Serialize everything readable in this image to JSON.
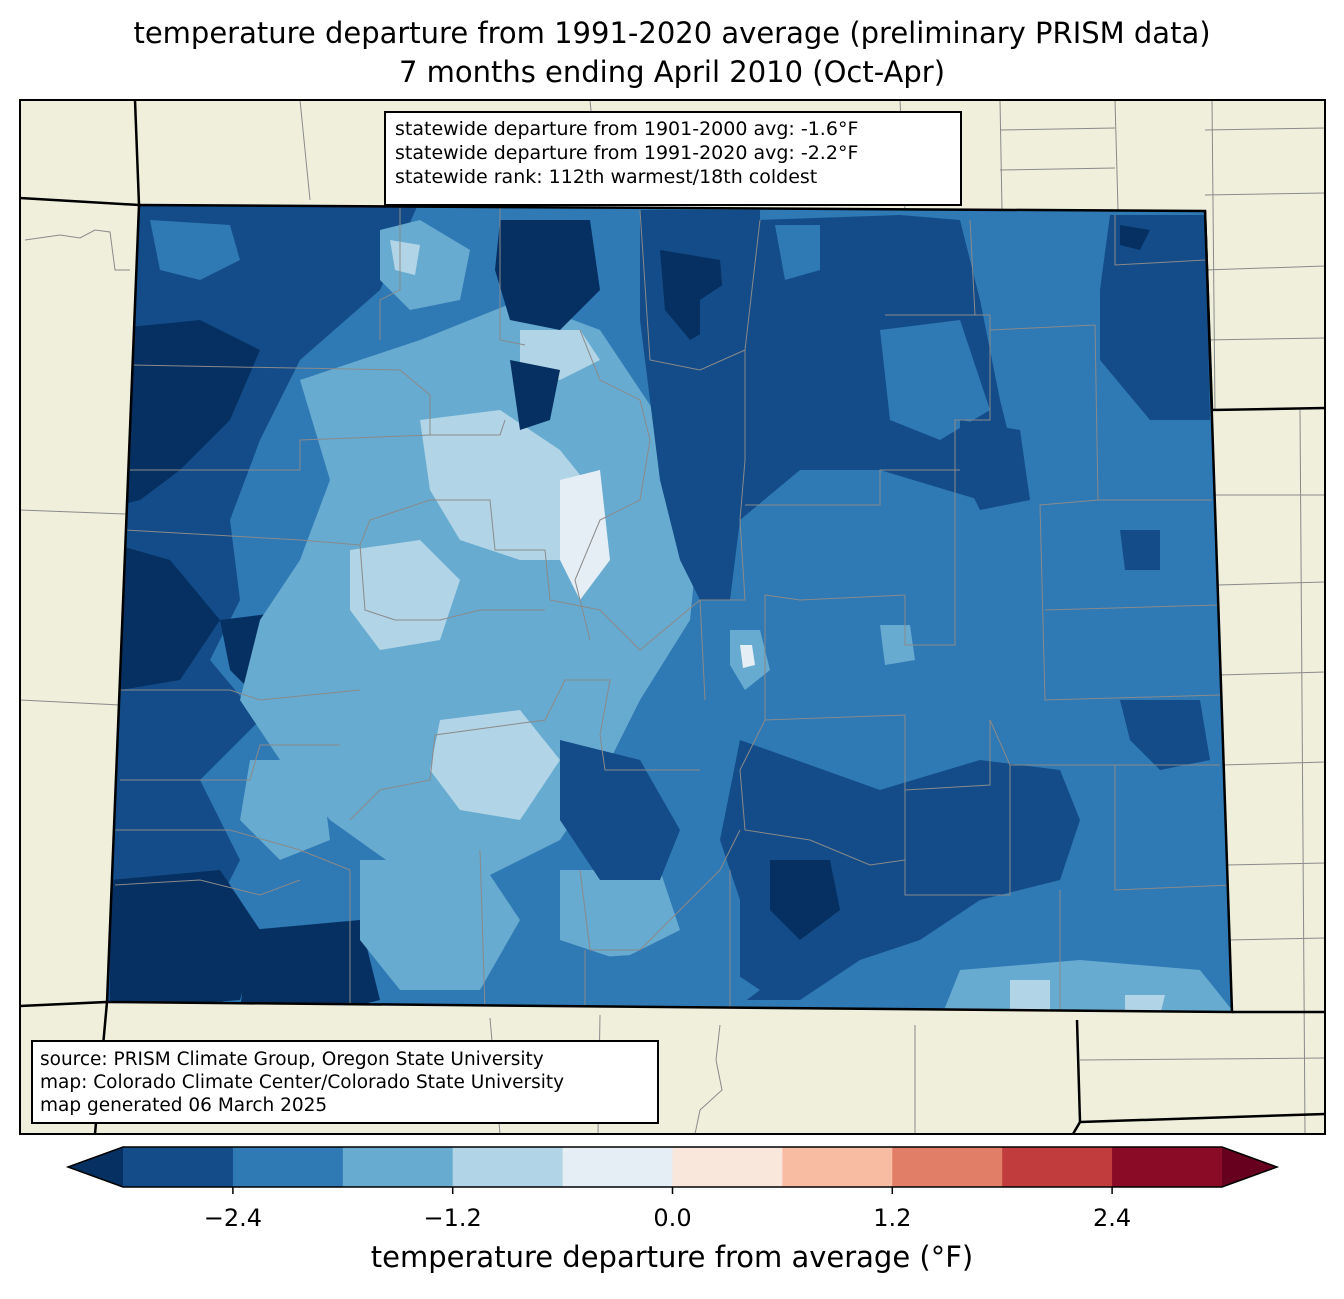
{
  "title": {
    "line1": "temperature departure from 1991-2020 average (preliminary PRISM data)",
    "line2": "7 months ending April 2010 (Oct-Apr)"
  },
  "stats": {
    "line1": "statewide departure from 1901-2000 avg: -1.6°F",
    "line2": "statewide departure from 1991-2020 avg: -2.2°F",
    "line3": "statewide rank: 112th warmest/18th coldest"
  },
  "source": {
    "line1": "source: PRISM Climate Group, Oregon State University",
    "line2": "map: Colorado Climate Center/Colorado State University",
    "line3": "map generated 06 March 2025"
  },
  "colorbar": {
    "label": "temperature departure from average (°F)",
    "ticks": [
      "−2.4",
      "−1.2",
      "0.0",
      "1.2",
      "2.4"
    ],
    "tick_values": [
      -2.4,
      -1.2,
      0.0,
      1.2,
      2.4
    ],
    "range": [
      -3.0,
      3.0
    ],
    "bin_edges": [
      -3.0,
      -2.4,
      -1.8,
      -1.2,
      -0.6,
      0.0,
      0.6,
      1.2,
      1.8,
      2.4,
      3.0
    ],
    "colors": [
      "#053061",
      "#134c88",
      "#2f79b5",
      "#68abd0",
      "#b1d5e7",
      "#e4eef4",
      "#fae7dc",
      "#f8bca2",
      "#e17e68",
      "#c13c3c",
      "#8a0b25",
      "#67001f"
    ]
  },
  "map": {
    "land_color": "#efefdc",
    "region": "Colorado",
    "dominant_bins": [
      "-3.0 to -2.4",
      "-2.4 to -1.8",
      "-1.8 to -1.2",
      "-1.2 to -0.6"
    ]
  }
}
